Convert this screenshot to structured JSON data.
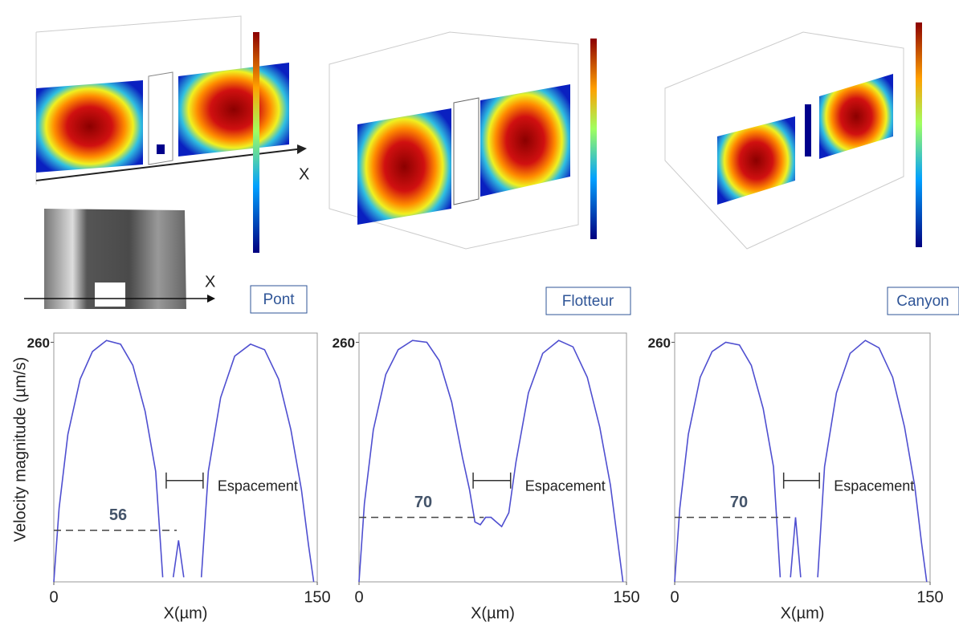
{
  "panels": [
    {
      "label": "Pont",
      "axis_marks": [
        "X",
        "X"
      ]
    },
    {
      "label": "Flotteur"
    },
    {
      "label": "Canyon"
    }
  ],
  "chart_data": [
    {
      "type": "line",
      "y_label": "Velocity magnitude (µm/s)",
      "x_label": "X(µm)",
      "annotation": "Espacement",
      "threshold": 56,
      "xlim": [
        0,
        150
      ],
      "ylim": [
        0,
        270
      ],
      "xticks": [
        0,
        150
      ],
      "yticks": [
        260
      ],
      "color": "#4f4fd0",
      "x": [
        0,
        3,
        8,
        15,
        22,
        30,
        38,
        45,
        52,
        58,
        62,
        65,
        68,
        71,
        74,
        77,
        80,
        84,
        88,
        95,
        103,
        112,
        120,
        128,
        135,
        141,
        145,
        148
      ],
      "values": [
        0,
        80,
        160,
        220,
        250,
        262,
        258,
        235,
        185,
        120,
        5,
        null,
        5,
        45,
        5,
        null,
        null,
        5,
        120,
        200,
        245,
        258,
        252,
        220,
        165,
        100,
        40,
        0
      ]
    },
    {
      "type": "line",
      "x_label": "X(µm)",
      "annotation": "Espacement",
      "threshold": 70,
      "xlim": [
        0,
        150
      ],
      "ylim": [
        0,
        270
      ],
      "xticks": [
        0,
        150
      ],
      "yticks": [
        260
      ],
      "color": "#4f4fd0",
      "x": [
        0,
        3,
        8,
        15,
        22,
        30,
        38,
        45,
        52,
        58,
        62,
        65,
        68,
        71,
        74,
        77,
        80,
        84,
        88,
        95,
        103,
        112,
        120,
        128,
        135,
        141,
        145,
        148
      ],
      "values": [
        0,
        85,
        165,
        225,
        252,
        262,
        260,
        240,
        195,
        135,
        100,
        65,
        62,
        70,
        70,
        65,
        60,
        75,
        130,
        205,
        248,
        262,
        255,
        222,
        168,
        105,
        45,
        0
      ]
    },
    {
      "type": "line",
      "x_label": "X(µm)",
      "annotation": "Espacement",
      "threshold": 70,
      "xlim": [
        0,
        150
      ],
      "ylim": [
        0,
        270
      ],
      "xticks": [
        0,
        150
      ],
      "yticks": [
        260
      ],
      "color": "#4f4fd0",
      "x": [
        0,
        3,
        8,
        15,
        22,
        30,
        38,
        45,
        52,
        58,
        62,
        65,
        68,
        71,
        74,
        77,
        80,
        84,
        88,
        95,
        103,
        112,
        120,
        128,
        135,
        141,
        145,
        148
      ],
      "values": [
        0,
        80,
        160,
        222,
        250,
        260,
        257,
        235,
        188,
        125,
        5,
        null,
        5,
        70,
        5,
        null,
        null,
        5,
        125,
        205,
        248,
        262,
        254,
        222,
        168,
        104,
        42,
        0
      ]
    }
  ]
}
